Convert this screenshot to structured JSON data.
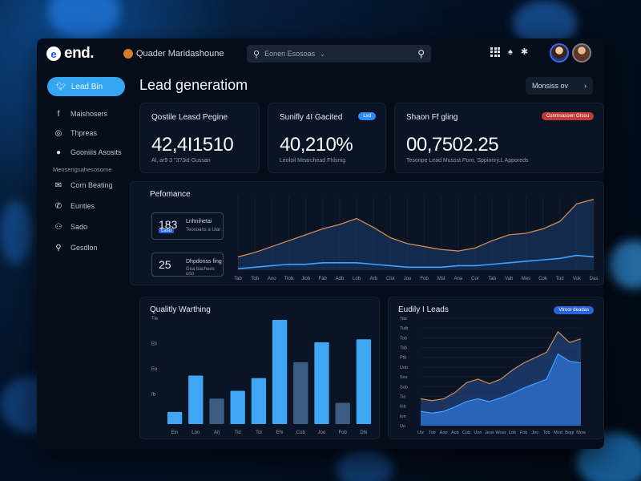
{
  "app": {
    "logo_mark": "e",
    "logo_text": "end.",
    "brand_text": "Quader Maridashoune",
    "search_placeholder": "Eonen Esosoas"
  },
  "sidebar": {
    "primary_button": "Lead Bin",
    "items": [
      {
        "icon": "facebook-icon",
        "glyph": "f",
        "label": "Maishosers"
      },
      {
        "icon": "globe-icon",
        "glyph": "◎",
        "label": "Thpreas"
      },
      {
        "icon": "chat-icon",
        "glyph": "●",
        "label": "Gooniiis Asosits"
      }
    ],
    "section_label": "Mensengsahesosome",
    "items2": [
      {
        "icon": "mail-icon",
        "glyph": "✉",
        "label": "Corn Beating"
      },
      {
        "icon": "phone-icon",
        "glyph": "✆",
        "label": "Eunties"
      },
      {
        "icon": "people-icon",
        "glyph": "⚇",
        "label": "Sado"
      },
      {
        "icon": "search-icon",
        "glyph": "⚲",
        "label": "Gesdlon"
      }
    ]
  },
  "page": {
    "title": "Lead generatiom",
    "action_label": "Monsiss ov"
  },
  "kpis": [
    {
      "title": "Qostile Leasd Pegine",
      "value": "42,4I1510",
      "sub": "Al, ar9 3 \"3?3id Gussan",
      "badge": ""
    },
    {
      "title": "Sunifly 4I Gacited",
      "value": "40,210%",
      "sub": "Leoloil Mearchead Fhlsmg",
      "badge": "Lsd"
    },
    {
      "title": "Shaon Ff gling",
      "value": "00,7502.25",
      "sub": "Tesonpe Lead Mussst Pom, Sppionry.L Apporeds",
      "badge": "Conmsasoen Gtsou"
    }
  ],
  "performance": {
    "title": "Pefomance",
    "legend": [
      {
        "value": "183",
        "label": "Lnhnihetai",
        "tag": "Lasd",
        "sub": "Teosoans a Uiar"
      },
      {
        "value": "25",
        "label": "Dhpdonss fing",
        "sub": "Goa bachues ono"
      }
    ]
  },
  "quality": {
    "title": "Qualitly Warthing"
  },
  "leads": {
    "title": "Eudily I Leads",
    "badge": "Vtroor deadas"
  },
  "colors": {
    "accent": "#36a6f2",
    "line_orange": "#d08a52",
    "line_blue": "#3fa2ff",
    "bar_blue": "#3ea6f5",
    "bar_slate": "#3c5c84"
  },
  "chart_data": [
    {
      "type": "line",
      "title": "Pefomance",
      "x": [
        "Tab",
        "Tob",
        "Ano",
        "Tiob",
        "Jiob",
        "Fab",
        "Adb",
        "Lob",
        "Arb",
        "Clot",
        "Jou",
        "Fob",
        "Mst",
        "Ana",
        "Cor",
        "Tab",
        "Vab",
        "Mes",
        "Cok",
        "Tod",
        "Vok",
        "Das"
      ],
      "series": [
        {
          "values": [
            9,
            12,
            16,
            20,
            24,
            28,
            31,
            35,
            29,
            22,
            18,
            16,
            14,
            13,
            15,
            20,
            24,
            25,
            28,
            33,
            45,
            48
          ]
        },
        {
          "values": [
            1,
            2,
            3,
            4,
            4,
            5,
            5,
            5,
            4,
            3,
            2,
            2,
            2,
            3,
            3,
            4,
            5,
            6,
            7,
            8,
            10,
            9
          ]
        }
      ],
      "ylim": [
        0,
        50
      ]
    },
    {
      "type": "bar",
      "title": "Qualitly Warthing",
      "categories": [
        "Ein",
        "Lon",
        "Arj",
        "Tid",
        "Tol",
        "Ehi",
        "Cob",
        "Joo",
        "Fob",
        "Dhi"
      ],
      "y_ticks": [
        "Tie",
        "Eli",
        "Eo",
        "Ib"
      ],
      "series": [
        {
          "values": [
            2,
            8,
            4.2,
            5.5,
            7.6,
            17.2,
            10.2,
            13.5,
            3.5,
            14
          ]
        }
      ],
      "ylim": [
        0,
        18
      ]
    },
    {
      "type": "area",
      "title": "Eudily I Leads",
      "categories": [
        "Uiz",
        "Tob",
        "Aop",
        "Aob",
        "Cob",
        "Uon",
        "Jeos",
        "Woar",
        "Lob",
        "Fob",
        "Joo",
        "Tob",
        "Mod",
        "Bogi",
        "Mow"
      ],
      "y_ticks": [
        "Tibr",
        "Tiab",
        "Tob",
        "Tab",
        "Ptb",
        "Uob",
        "Sos",
        "Sob",
        "Tin",
        "Inb",
        "Ion",
        "Uo"
      ],
      "series": [
        {
          "values": [
            30,
            28,
            30,
            37,
            48,
            52,
            47,
            52,
            62,
            70,
            76,
            82,
            105,
            93,
            97
          ]
        },
        {
          "values": [
            16,
            14,
            16,
            21,
            27,
            30,
            27,
            31,
            36,
            42,
            47,
            52,
            80,
            72,
            70
          ]
        }
      ],
      "ylim": [
        0,
        120
      ]
    }
  ]
}
